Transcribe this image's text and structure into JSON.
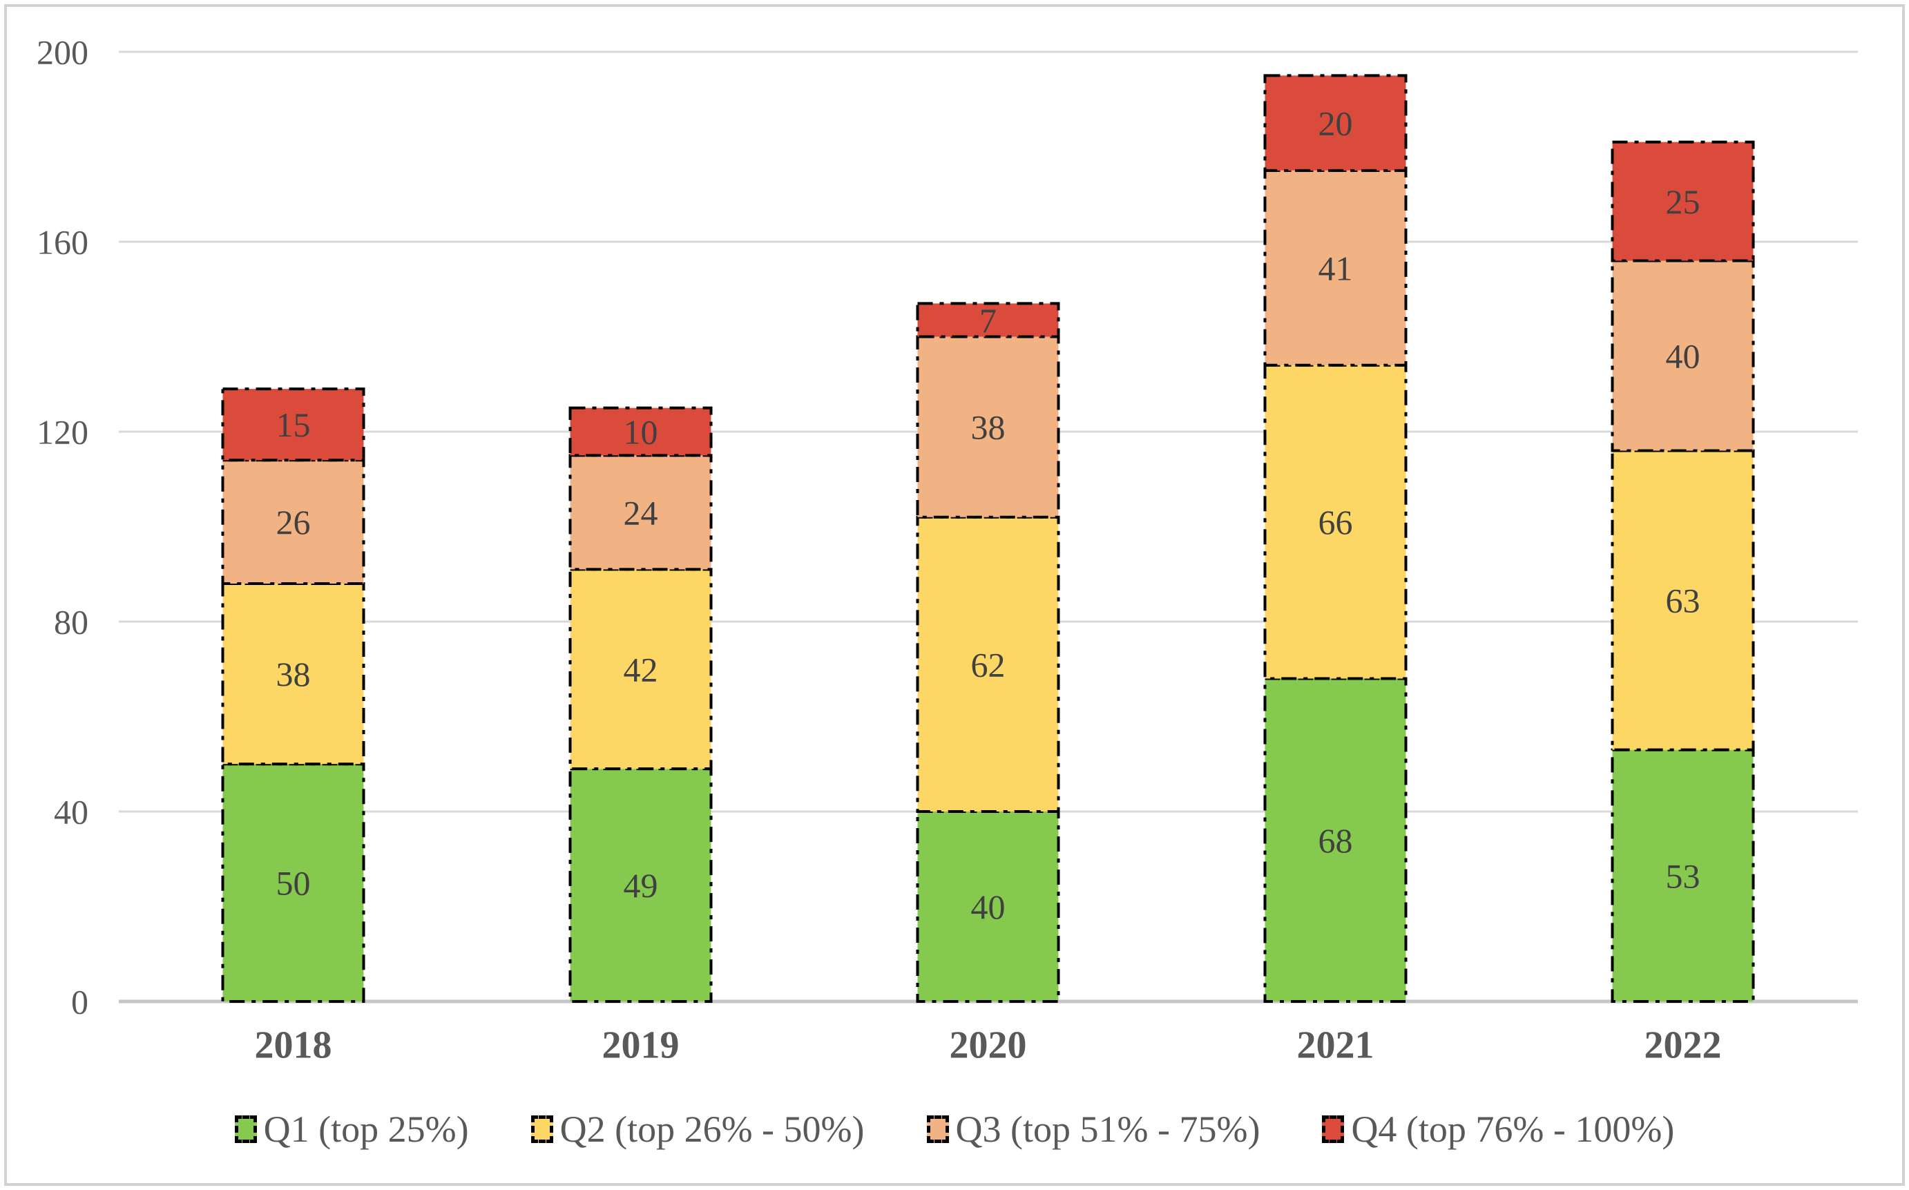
{
  "chart_data": {
    "type": "bar",
    "stacked": true,
    "title": "",
    "xlabel": "",
    "ylabel": "",
    "categories": [
      "2018",
      "2019",
      "2020",
      "2021",
      "2022"
    ],
    "series": [
      {
        "name": "Q1 (top 25%)",
        "color": "#85CA4E",
        "values": [
          50,
          49,
          40,
          68,
          53
        ]
      },
      {
        "name": "Q2 (top 26% - 50%)",
        "color": "#FDD765",
        "values": [
          38,
          42,
          62,
          66,
          63
        ]
      },
      {
        "name": "Q3 (top 51% - 75%)",
        "color": "#F2B384",
        "values": [
          26,
          24,
          38,
          41,
          40
        ]
      },
      {
        "name": "Q4 (top 76% - 100%)",
        "color": "#DB4B3C",
        "values": [
          15,
          10,
          7,
          20,
          25
        ]
      }
    ],
    "y_ticks": [
      0,
      40,
      80,
      120,
      160,
      200
    ],
    "ylim": [
      0,
      200
    ],
    "grid": true,
    "legend_position": "bottom",
    "bar_border_style": "dash-dot",
    "bar_border_color": "#000000"
  },
  "style_colors": {
    "gridline": "#D9D9D9",
    "axis_line": "#C6C6C6",
    "frame": "#D2D2D2",
    "tick_text": "#595959",
    "category_text": "#595959",
    "value_text": "#404040"
  }
}
